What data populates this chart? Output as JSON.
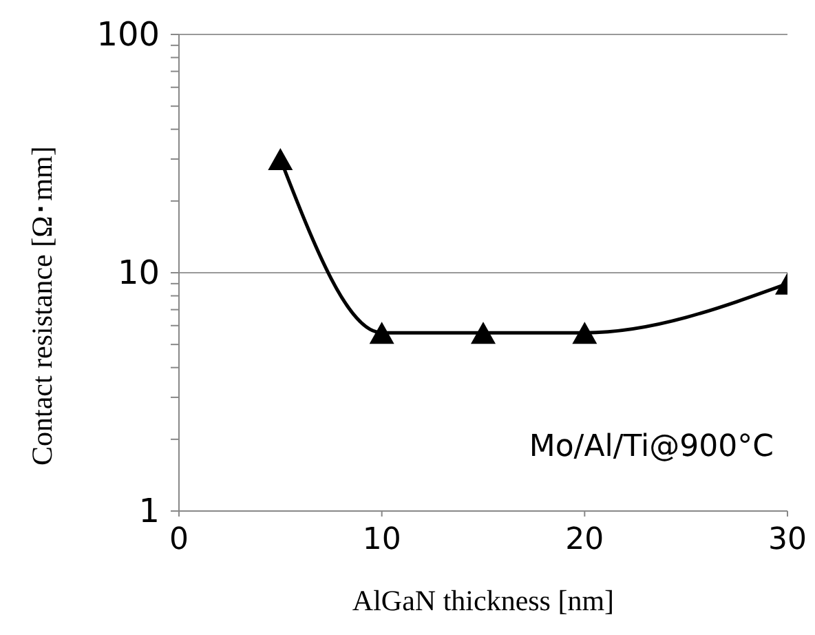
{
  "chart_data": {
    "type": "line",
    "xlabel": "AlGaN thickness [nm]",
    "ylabel": "Contact resistance [Ω･mm]",
    "x": [
      5,
      10,
      15,
      20,
      30
    ],
    "series": [
      {
        "color": "#000000",
        "values": [
          30,
          5.6,
          5.6,
          5.6,
          9
        ]
      }
    ],
    "xlim": [
      0,
      30
    ],
    "xticks": [
      0,
      10,
      20,
      30
    ],
    "ylim": [
      1,
      100
    ],
    "yticks": [
      1,
      {
        "value": 2,
        "label": null
      },
      {
        "value": 3,
        "label": null
      },
      {
        "value": 4,
        "label": null
      },
      {
        "value": 5,
        "label": null
      },
      {
        "value": 6,
        "label": null
      },
      {
        "value": 7,
        "label": null
      },
      {
        "value": 8,
        "label": null
      },
      {
        "value": 9,
        "label": null
      },
      10,
      {
        "value": 20,
        "label": null
      },
      {
        "value": 30,
        "label": null
      },
      {
        "value": 40,
        "label": null
      },
      {
        "value": 50,
        "label": null
      },
      {
        "value": 60,
        "label": null
      },
      {
        "value": 70,
        "label": null
      },
      {
        "value": 80,
        "label": null
      },
      {
        "value": 90,
        "label": null
      },
      100
    ],
    "log": "y",
    "grid": "y",
    "marker": "triangle",
    "line_style": "solid",
    "annotations": [
      "Mo/Al/Ti@900°C"
    ]
  }
}
